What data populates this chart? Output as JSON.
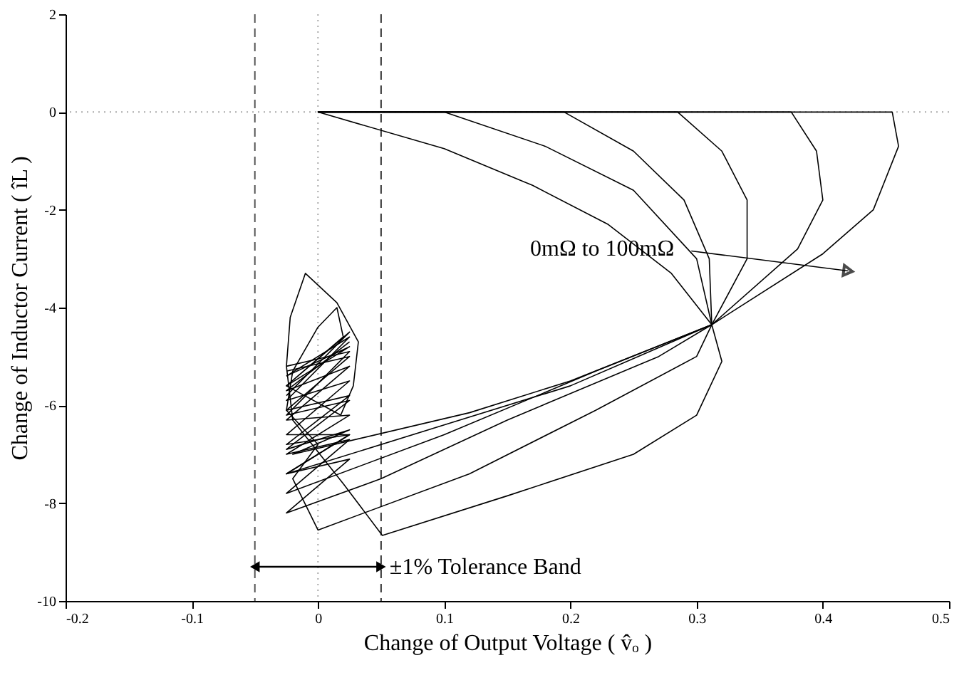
{
  "chart_data": {
    "type": "line",
    "xlabel": "Change of Output Voltage ( v̂ₒ )",
    "ylabel": "Change of Inductor Current ( îL )",
    "xlim": [
      -0.2,
      0.5
    ],
    "xticks": [
      -0.2,
      -0.1,
      0,
      0.1,
      0.2,
      0.3,
      0.4,
      0.5
    ],
    "ylim": [
      -10,
      2
    ],
    "yticks": [
      -10,
      -8,
      -6,
      -4,
      -2,
      0,
      2
    ],
    "grid": false,
    "line_style": "solid",
    "marker": "none",
    "series": [
      {
        "color": "#000000",
        "x": [
          0,
          0.1,
          0.17,
          0.23,
          0.28,
          0.312,
          0.32,
          0.3,
          0.25,
          0.15,
          0.051,
          0.02,
          -0.02,
          -0.025,
          -0.022,
          -0.01,
          0.015,
          0.032,
          0.028,
          0.018,
          -0.025,
          0.025,
          -0.025
        ],
        "values": [
          0,
          -0.75,
          -1.5,
          -2.3,
          -3.3,
          -4.35,
          -5.1,
          -6.2,
          -7.0,
          -7.85,
          -8.66,
          -7.6,
          -6.3,
          -5.2,
          -4.2,
          -3.3,
          -3.9,
          -4.7,
          -5.6,
          -6.2,
          -5.6,
          -4.8,
          -5.4
        ]
      },
      {
        "color": "#000000",
        "x": [
          0,
          0.1,
          0.18,
          0.25,
          0.3,
          0.312,
          0.3,
          0.22,
          0.12,
          0,
          -0.02,
          0,
          -0.025,
          -0.02,
          0,
          0.015,
          0.02,
          -0.025,
          0.025,
          -0.025
        ],
        "values": [
          0,
          0,
          -0.7,
          -1.6,
          -3.0,
          -4.35,
          -5.0,
          -6.1,
          -7.4,
          -8.55,
          -7.5,
          -6.8,
          -6.1,
          -5.3,
          -4.4,
          -4.0,
          -4.6,
          -5.6,
          -4.5,
          -5.8
        ]
      },
      {
        "color": "#000000",
        "x": [
          0,
          0.195,
          0.25,
          0.29,
          0.31,
          0.312,
          0.27,
          0.15,
          0.05,
          -0.025,
          0.025,
          -0.025,
          0.025,
          -0.025,
          0.025,
          -0.025,
          0.025,
          -0.025
        ],
        "values": [
          0,
          0,
          -0.8,
          -1.8,
          -3.0,
          -4.35,
          -5.0,
          -6.3,
          -7.5,
          -8.2,
          -7.1,
          -7.4,
          -6.6,
          -6.6,
          -5.5,
          -5.9,
          -4.6,
          -5.4
        ]
      },
      {
        "color": "#000000",
        "x": [
          0,
          0.285,
          0.32,
          0.34,
          0.34,
          0.312,
          0.22,
          0.1,
          -0.025,
          0.025,
          -0.025,
          0.025,
          -0.025,
          0.025,
          -0.025,
          0.025
        ],
        "values": [
          0,
          0,
          -0.8,
          -1.8,
          -3.0,
          -4.35,
          -5.3,
          -6.6,
          -7.8,
          -6.7,
          -7.0,
          -6.2,
          -6.3,
          -5.2,
          -5.7,
          -4.7
        ]
      },
      {
        "color": "#000000",
        "x": [
          0,
          0.375,
          0.395,
          0.4,
          0.38,
          0.312,
          0.2,
          0.1,
          -0.025,
          0.025,
          -0.025,
          0.025,
          -0.025,
          0.025,
          -0.025
        ],
        "values": [
          0,
          0,
          -0.8,
          -1.8,
          -2.8,
          -4.35,
          -5.6,
          -6.4,
          -7.4,
          -6.6,
          -6.8,
          -5.8,
          -6.1,
          -5.0,
          -5.3
        ]
      },
      {
        "color": "#000000",
        "x": [
          0,
          0.455,
          0.46,
          0.44,
          0.4,
          0.312,
          0.2,
          0.12,
          -0.02,
          0.025,
          -0.025,
          0.025,
          -0.025,
          0.025,
          -0.025
        ],
        "values": [
          0,
          0,
          -0.7,
          -2.0,
          -2.9,
          -4.35,
          -5.5,
          -6.15,
          -7.0,
          -6.5,
          -6.9,
          -5.9,
          -6.2,
          -4.9,
          -5.2
        ]
      }
    ],
    "ref_lines": [
      {
        "axis": "x",
        "value": 0,
        "color": "#aaaaaa",
        "line_style": "dotted"
      },
      {
        "axis": "y",
        "value": 0,
        "color": "#aaaaaa",
        "line_style": "dotted"
      },
      {
        "axis": "x",
        "value": -0.05,
        "color": "#555555",
        "line_style": "dashed"
      },
      {
        "axis": "x",
        "value": 0.05,
        "color": "#333333",
        "line_style": "dashed"
      }
    ],
    "annotations": [
      {
        "text": "0mΩ to 100mΩ",
        "x": 0.42,
        "y": -3.25
      },
      {
        "text": "±1% Tolerance Band",
        "x": 0.05,
        "y": -9.3
      }
    ]
  }
}
